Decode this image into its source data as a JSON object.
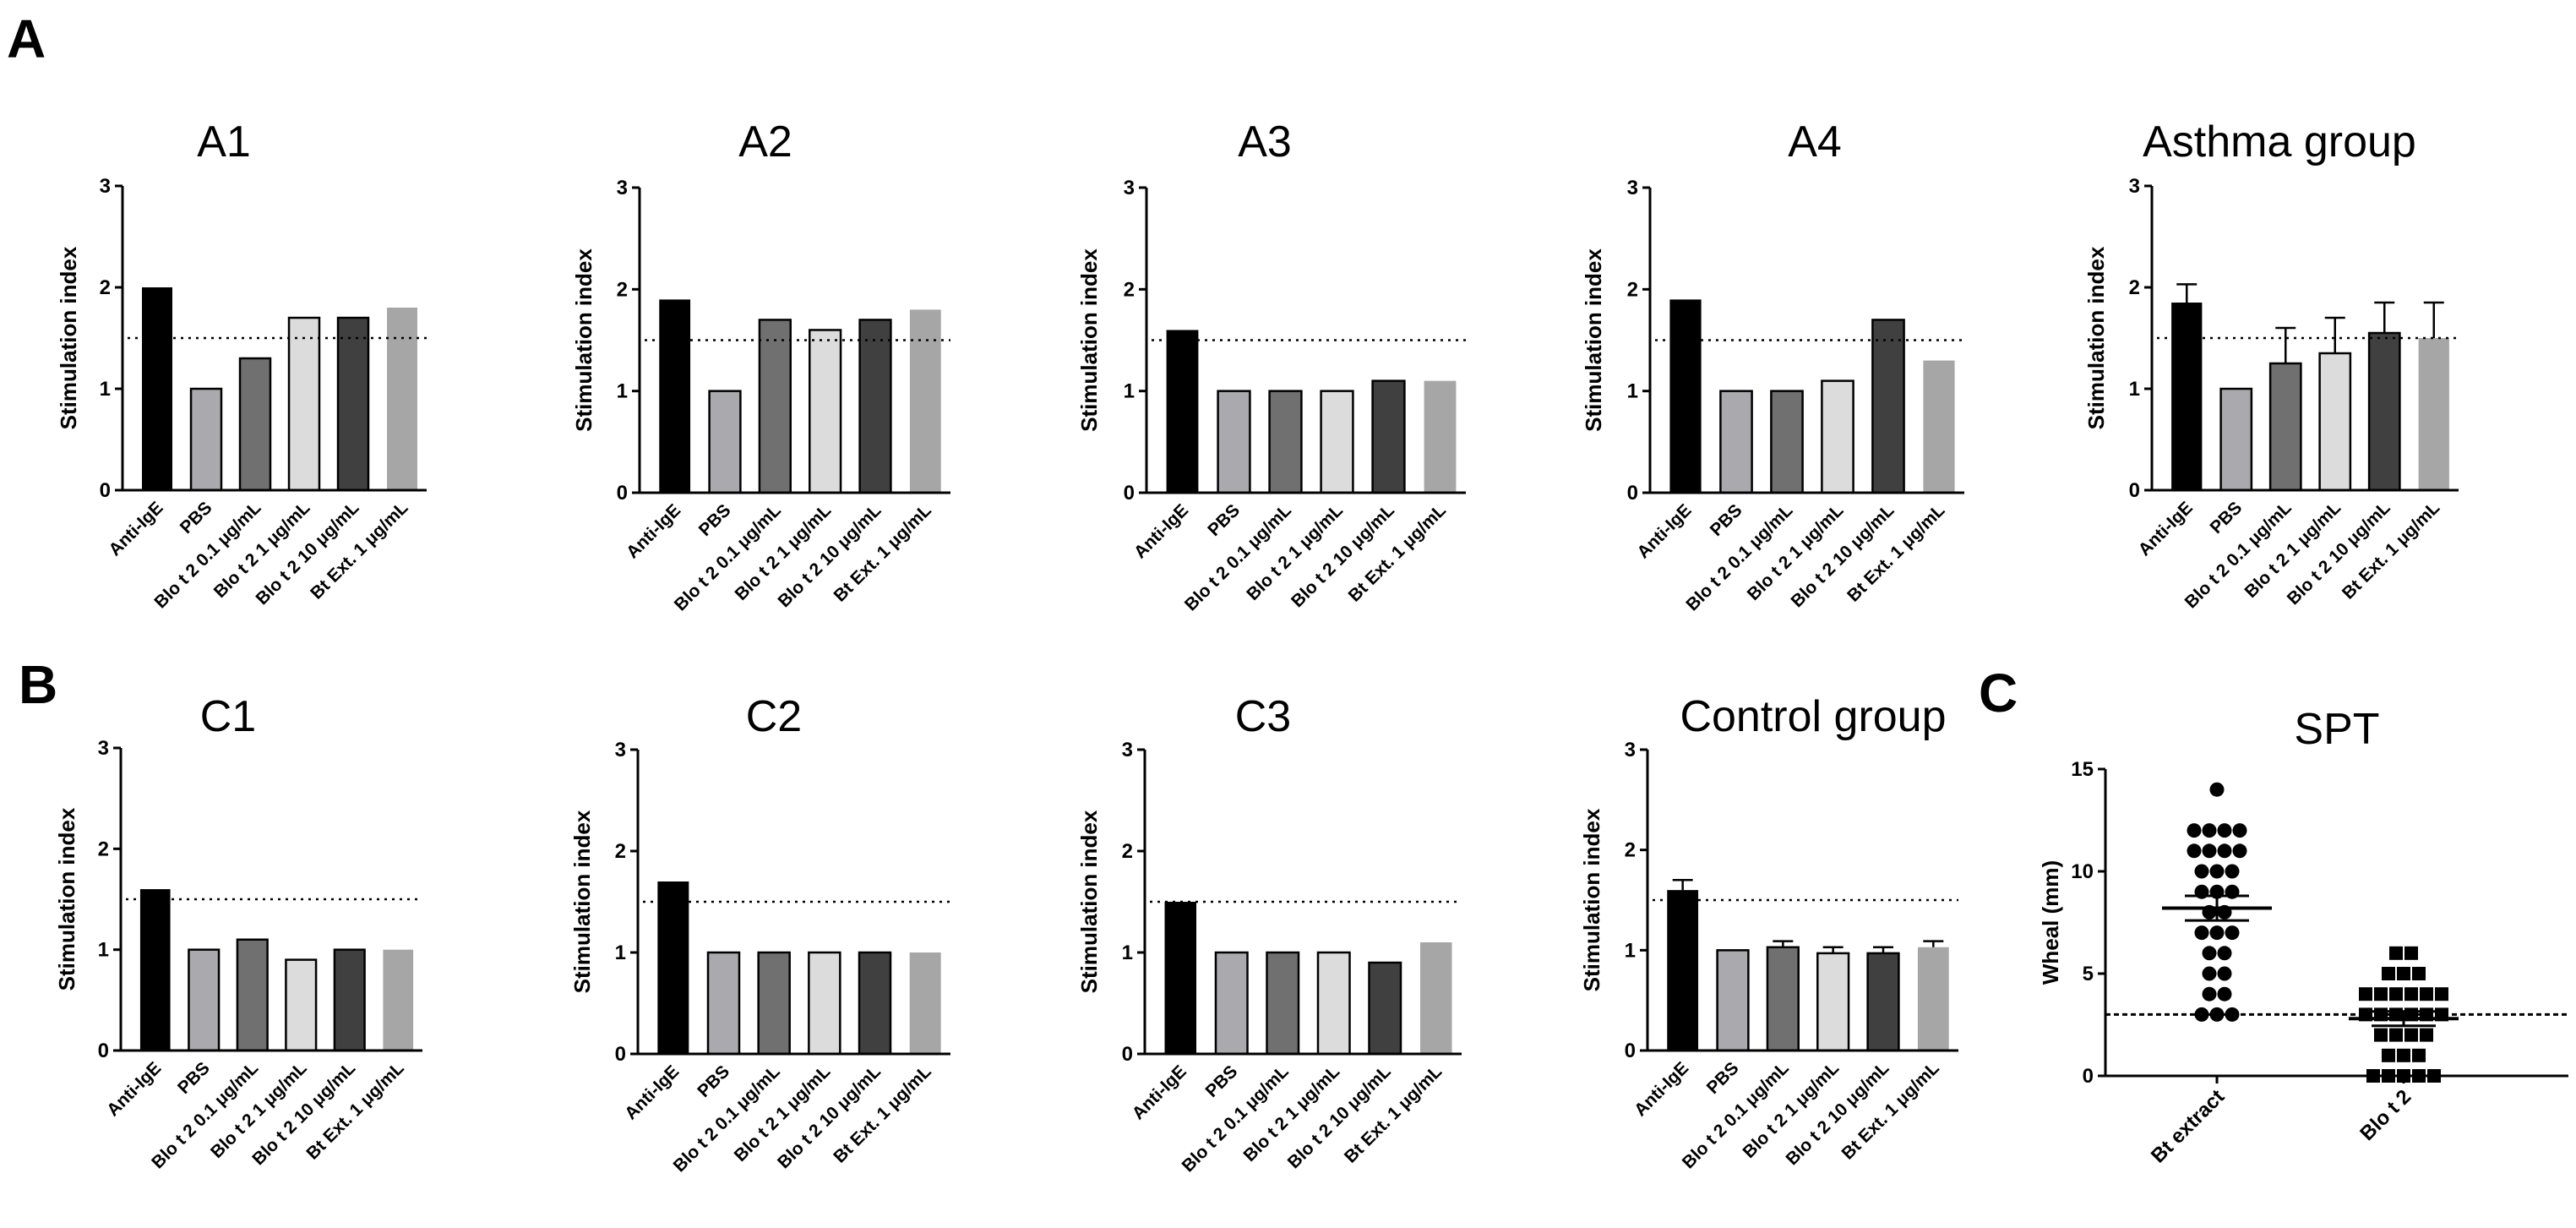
{
  "panels": {
    "A": "A",
    "B": "B",
    "C": "C"
  },
  "colors": {
    "anti_ige": "#000000",
    "pbs": "#a9a9ae",
    "blo_0_1": "#707070",
    "blo_1": "#dcdcdc",
    "blo_10": "#404040",
    "bt_ext": "#a6a6a6",
    "axis": "#000000"
  },
  "chart_data": [
    {
      "id": "A1",
      "type": "bar",
      "title": "A1",
      "ylabel": "Stimulation index",
      "ylim": [
        0,
        3
      ],
      "yticks": [
        0,
        1,
        2,
        3
      ],
      "threshold": 1.5,
      "categories": [
        "Anti-IgE",
        "PBS",
        "Blo t 2 0.1  μg/mL",
        "Blo t 2 1  μg/mL",
        "Blo t 2 10  μg/mL",
        "Bt Ext. 1  μg/mL"
      ],
      "values": [
        2.0,
        1.0,
        1.3,
        1.7,
        1.7,
        1.8
      ]
    },
    {
      "id": "A2",
      "type": "bar",
      "title": "A2",
      "ylabel": "Stimulation index",
      "ylim": [
        0,
        3
      ],
      "yticks": [
        0,
        1,
        2,
        3
      ],
      "threshold": 1.5,
      "categories": [
        "Anti-IgE",
        "PBS",
        "Blo t 2 0.1  μg/mL",
        "Blo t 2 1  μg/mL",
        "Blo t 2 10  μg/mL",
        "Bt Ext. 1  μg/mL"
      ],
      "values": [
        1.9,
        1.0,
        1.7,
        1.6,
        1.7,
        1.8
      ]
    },
    {
      "id": "A3",
      "type": "bar",
      "title": "A3",
      "ylabel": "Stimulation index",
      "ylim": [
        0,
        3
      ],
      "yticks": [
        0,
        1,
        2,
        3
      ],
      "threshold": 1.5,
      "categories": [
        "Anti-IgE",
        "PBS",
        "Blo t 2 0.1  μg/mL",
        "Blo t 2 1  μg/mL",
        "Blo t 2 10  μg/mL",
        "Bt Ext. 1  μg/mL"
      ],
      "values": [
        1.6,
        1.0,
        1.0,
        1.0,
        1.1,
        1.1
      ]
    },
    {
      "id": "A4",
      "type": "bar",
      "title": "A4",
      "ylabel": "Stimulation index",
      "ylim": [
        0,
        3
      ],
      "yticks": [
        0,
        1,
        2,
        3
      ],
      "threshold": 1.5,
      "categories": [
        "Anti-IgE",
        "PBS",
        "Blo t 2 0.1  μg/mL",
        "Blo t 2 1  μg/mL",
        "Blo t 2 10 μg/mL",
        "Bt Ext. 1  μg/mL"
      ],
      "values": [
        1.9,
        1.0,
        1.0,
        1.1,
        1.7,
        1.3
      ]
    },
    {
      "id": "asthma-group",
      "type": "bar",
      "title": "Asthma group",
      "ylabel": "Stimulation index",
      "ylim": [
        0,
        3
      ],
      "yticks": [
        0,
        1,
        2,
        3
      ],
      "threshold": 1.5,
      "categories": [
        "Anti-IgE",
        "PBS",
        "Blo t 2 0.1  μg/mL",
        "Blo t 2 1  μg/mL",
        "Blo t 2 10  μg/mL",
        "Bt Ext. 1  μg/mL"
      ],
      "values": [
        1.85,
        1.0,
        1.25,
        1.35,
        1.55,
        1.5
      ],
      "errors": [
        0.18,
        0,
        0.35,
        0.35,
        0.3,
        0.35
      ]
    },
    {
      "id": "C1",
      "type": "bar",
      "title": "C1",
      "ylabel": "Stimulation index",
      "ylim": [
        0,
        3
      ],
      "yticks": [
        0,
        1,
        2,
        3
      ],
      "threshold": 1.5,
      "categories": [
        "Anti-IgE",
        "PBS",
        "Blo t 2 0.1  μg/mL",
        "Blo t 2 1  μg/mL",
        "Blo t 2 10  μg/mL",
        "Bt Ext. 1  μg/mL"
      ],
      "values": [
        1.6,
        1.0,
        1.1,
        0.9,
        1.0,
        1.0
      ]
    },
    {
      "id": "C2",
      "type": "bar",
      "title": "C2",
      "ylabel": "Stimulation index",
      "ylim": [
        0,
        3
      ],
      "yticks": [
        0,
        1,
        2,
        3
      ],
      "threshold": 1.5,
      "categories": [
        "Anti-IgE",
        "PBS",
        "Blo t 2 0.1  μg/mL",
        "Blo t 2 1  μg/mL",
        "Blo t 2 10  μg/mL",
        "Bt Ext. 1  μg/mL"
      ],
      "values": [
        1.7,
        1.0,
        1.0,
        1.0,
        1.0,
        1.0
      ]
    },
    {
      "id": "C3",
      "type": "bar",
      "title": "C3",
      "ylabel": "Stimulation index",
      "ylim": [
        0,
        3
      ],
      "yticks": [
        0,
        1,
        2,
        3
      ],
      "threshold": 1.5,
      "categories": [
        "Anti-IgE",
        "PBS",
        "Blo t 2 0.1  μg/mL",
        "Blo t 2 1 μg/mL",
        "Blo t 2 10  μg/mL",
        "Bt Ext. 1  μg/mL"
      ],
      "values": [
        1.5,
        1.0,
        1.0,
        1.0,
        0.9,
        1.1
      ]
    },
    {
      "id": "control-group",
      "type": "bar",
      "title": "Control group",
      "ylabel": "Stimulation index",
      "ylim": [
        0,
        3
      ],
      "yticks": [
        0,
        1,
        2,
        3
      ],
      "threshold": 1.5,
      "categories": [
        "Anti-IgE",
        "PBS",
        "Blo t 2 0.1  μg/mL",
        "Blo t 2 1  μg/mL",
        "Blo t 2 10  μg/mL",
        "Bt Ext. 1  μg/mL"
      ],
      "values": [
        1.6,
        1.0,
        1.03,
        0.97,
        0.97,
        1.03
      ],
      "errors": [
        0.1,
        0,
        0.06,
        0.06,
        0.06,
        0.06
      ]
    },
    {
      "id": "SPT",
      "type": "scatter",
      "title": "SPT",
      "ylabel": "Wheal  (mm)",
      "ylim": [
        0,
        15
      ],
      "yticks": [
        0,
        5,
        10,
        15
      ],
      "threshold": 3,
      "categories": [
        "Bt extract",
        "Blo t 2"
      ],
      "series": [
        {
          "name": "Bt extract",
          "marker": "circle",
          "values": [
            14,
            12,
            12,
            12,
            12,
            11,
            11,
            11,
            11,
            10,
            10,
            10,
            9,
            9,
            9,
            8,
            8,
            7,
            7,
            7,
            6,
            6,
            5,
            5,
            4,
            4,
            3,
            3,
            3
          ],
          "mean": 8.2,
          "sem": 0.6
        },
        {
          "name": "Blo t 2",
          "marker": "square",
          "values": [
            6,
            6,
            5,
            5,
            5,
            4,
            4,
            4,
            4,
            4,
            4,
            3,
            3,
            3,
            3,
            3,
            3,
            2,
            2,
            2,
            2,
            1,
            1,
            1,
            0,
            0,
            0,
            0,
            0
          ],
          "mean": 2.8,
          "sem": 0.35
        }
      ]
    }
  ]
}
